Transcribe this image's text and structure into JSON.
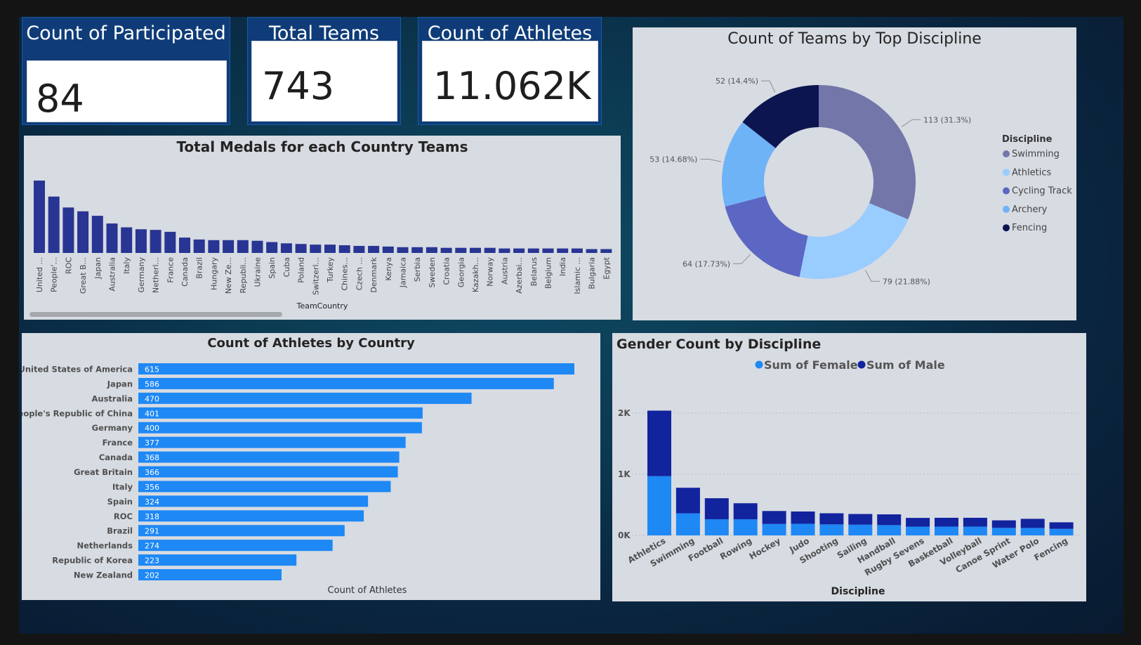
{
  "kpis": {
    "participated_countries": {
      "title": "Count of Participated Countries",
      "value": "84"
    },
    "total_teams": {
      "title": "Total Teams",
      "value": "743"
    },
    "athletes": {
      "title": "Count of Athletes",
      "value": "11.062K"
    }
  },
  "colors": {
    "canvas": "#0b3a52",
    "kpi_bg": "#0f3c78",
    "medal_bar": "#283593",
    "athlete_bar": "#1e88f5",
    "female": "#1e88f5",
    "male": "#12239e",
    "donut": [
      "#7276a8",
      "#99ccff",
      "#5b67c2",
      "#6fb3f7",
      "#0c1550"
    ]
  },
  "chart_data": [
    {
      "id": "medals",
      "type": "bar",
      "title": "Total Medals for each Country Teams",
      "xlabel": "TeamCountry",
      "ylabel": "",
      "categories": [
        "United ...",
        "People'...",
        "ROC",
        "Great B...",
        "Japan",
        "Australia",
        "Italy",
        "Germany",
        "Netherl...",
        "France",
        "Canada",
        "Brazil",
        "Hungary",
        "New Ze...",
        "Republi...",
        "Ukraine",
        "Spain",
        "Cuba",
        "Poland",
        "Switzerl...",
        "Turkey",
        "Chines...",
        "Czech ...",
        "Denmark",
        "Kenya",
        "Jamaica",
        "Serbia",
        "Sweden",
        "Croatia",
        "Georgia",
        "Kazakh...",
        "Norway",
        "Austria",
        "Azerbai...",
        "Belarus",
        "Belgium",
        "India",
        "Islamic ...",
        "Bulgaria",
        "Egypt"
      ],
      "values": [
        113,
        88,
        71,
        65,
        58,
        46,
        40,
        37,
        36,
        33,
        24,
        21,
        20,
        20,
        20,
        19,
        17,
        15,
        14,
        13,
        13,
        12,
        11,
        11,
        10,
        9,
        9,
        9,
        8,
        8,
        8,
        8,
        7,
        7,
        7,
        7,
        7,
        7,
        6,
        6
      ],
      "ylim": [
        0,
        120
      ],
      "grid": false,
      "legend": "none"
    },
    {
      "id": "teams_discipline",
      "type": "pie",
      "title": "Count of Teams by Top Discipline",
      "legend_title": "Discipline",
      "legend_position": "right",
      "slices": [
        {
          "name": "Swimming",
          "value": 113,
          "label": "113 (31.3%)"
        },
        {
          "name": "Athletics",
          "value": 79,
          "label": "79 (21.88%)"
        },
        {
          "name": "Cycling Track",
          "value": 64,
          "label": "64 (17.73%)"
        },
        {
          "name": "Archery",
          "value": 53,
          "label": "53 (14.68%)"
        },
        {
          "name": "Fencing",
          "value": 52,
          "label": "52 (14.4%)"
        }
      ]
    },
    {
      "id": "athletes_country",
      "type": "bar",
      "orientation": "horizontal",
      "title": "Count of Athletes by Country",
      "xlabel": "Count of Athletes",
      "ylabel": "",
      "categories": [
        "United States of America",
        "Japan",
        "Australia",
        "People's Republic of China",
        "Germany",
        "France",
        "Canada",
        "Great Britain",
        "Italy",
        "Spain",
        "ROC",
        "Brazil",
        "Netherlands",
        "Republic of Korea",
        "New Zealand"
      ],
      "values": [
        615,
        586,
        470,
        401,
        400,
        377,
        368,
        366,
        356,
        324,
        318,
        291,
        274,
        223,
        202
      ],
      "xlim": [
        0,
        615
      ],
      "grid": false
    },
    {
      "id": "gender_discipline",
      "type": "bar",
      "stacked": true,
      "title": "Gender Count by Discipline",
      "xlabel": "Discipline",
      "ylabel": "",
      "legend_position": "top",
      "categories": [
        "Athletics",
        "Swimming",
        "Football",
        "Rowing",
        "Hockey",
        "Judo",
        "Shooting",
        "Sailing",
        "Handball",
        "Rugby Sevens",
        "Basketball",
        "Volleyball",
        "Canoe Sprint",
        "Water Polo",
        "Fencing"
      ],
      "series": [
        {
          "name": "Sum of Female",
          "values": [
            969,
            361,
            264,
            264,
            187,
            190,
            180,
            175,
            168,
            143,
            144,
            144,
            123,
            122,
            107
          ]
        },
        {
          "name": "Sum of Male",
          "values": [
            1072,
            418,
            344,
            262,
            212,
            201,
            182,
            175,
            176,
            143,
            144,
            144,
            123,
            149,
            107
          ]
        }
      ],
      "yticks": [
        "0K",
        "1K",
        "2K"
      ],
      "ylim": [
        0,
        2300
      ],
      "grid": true
    }
  ]
}
